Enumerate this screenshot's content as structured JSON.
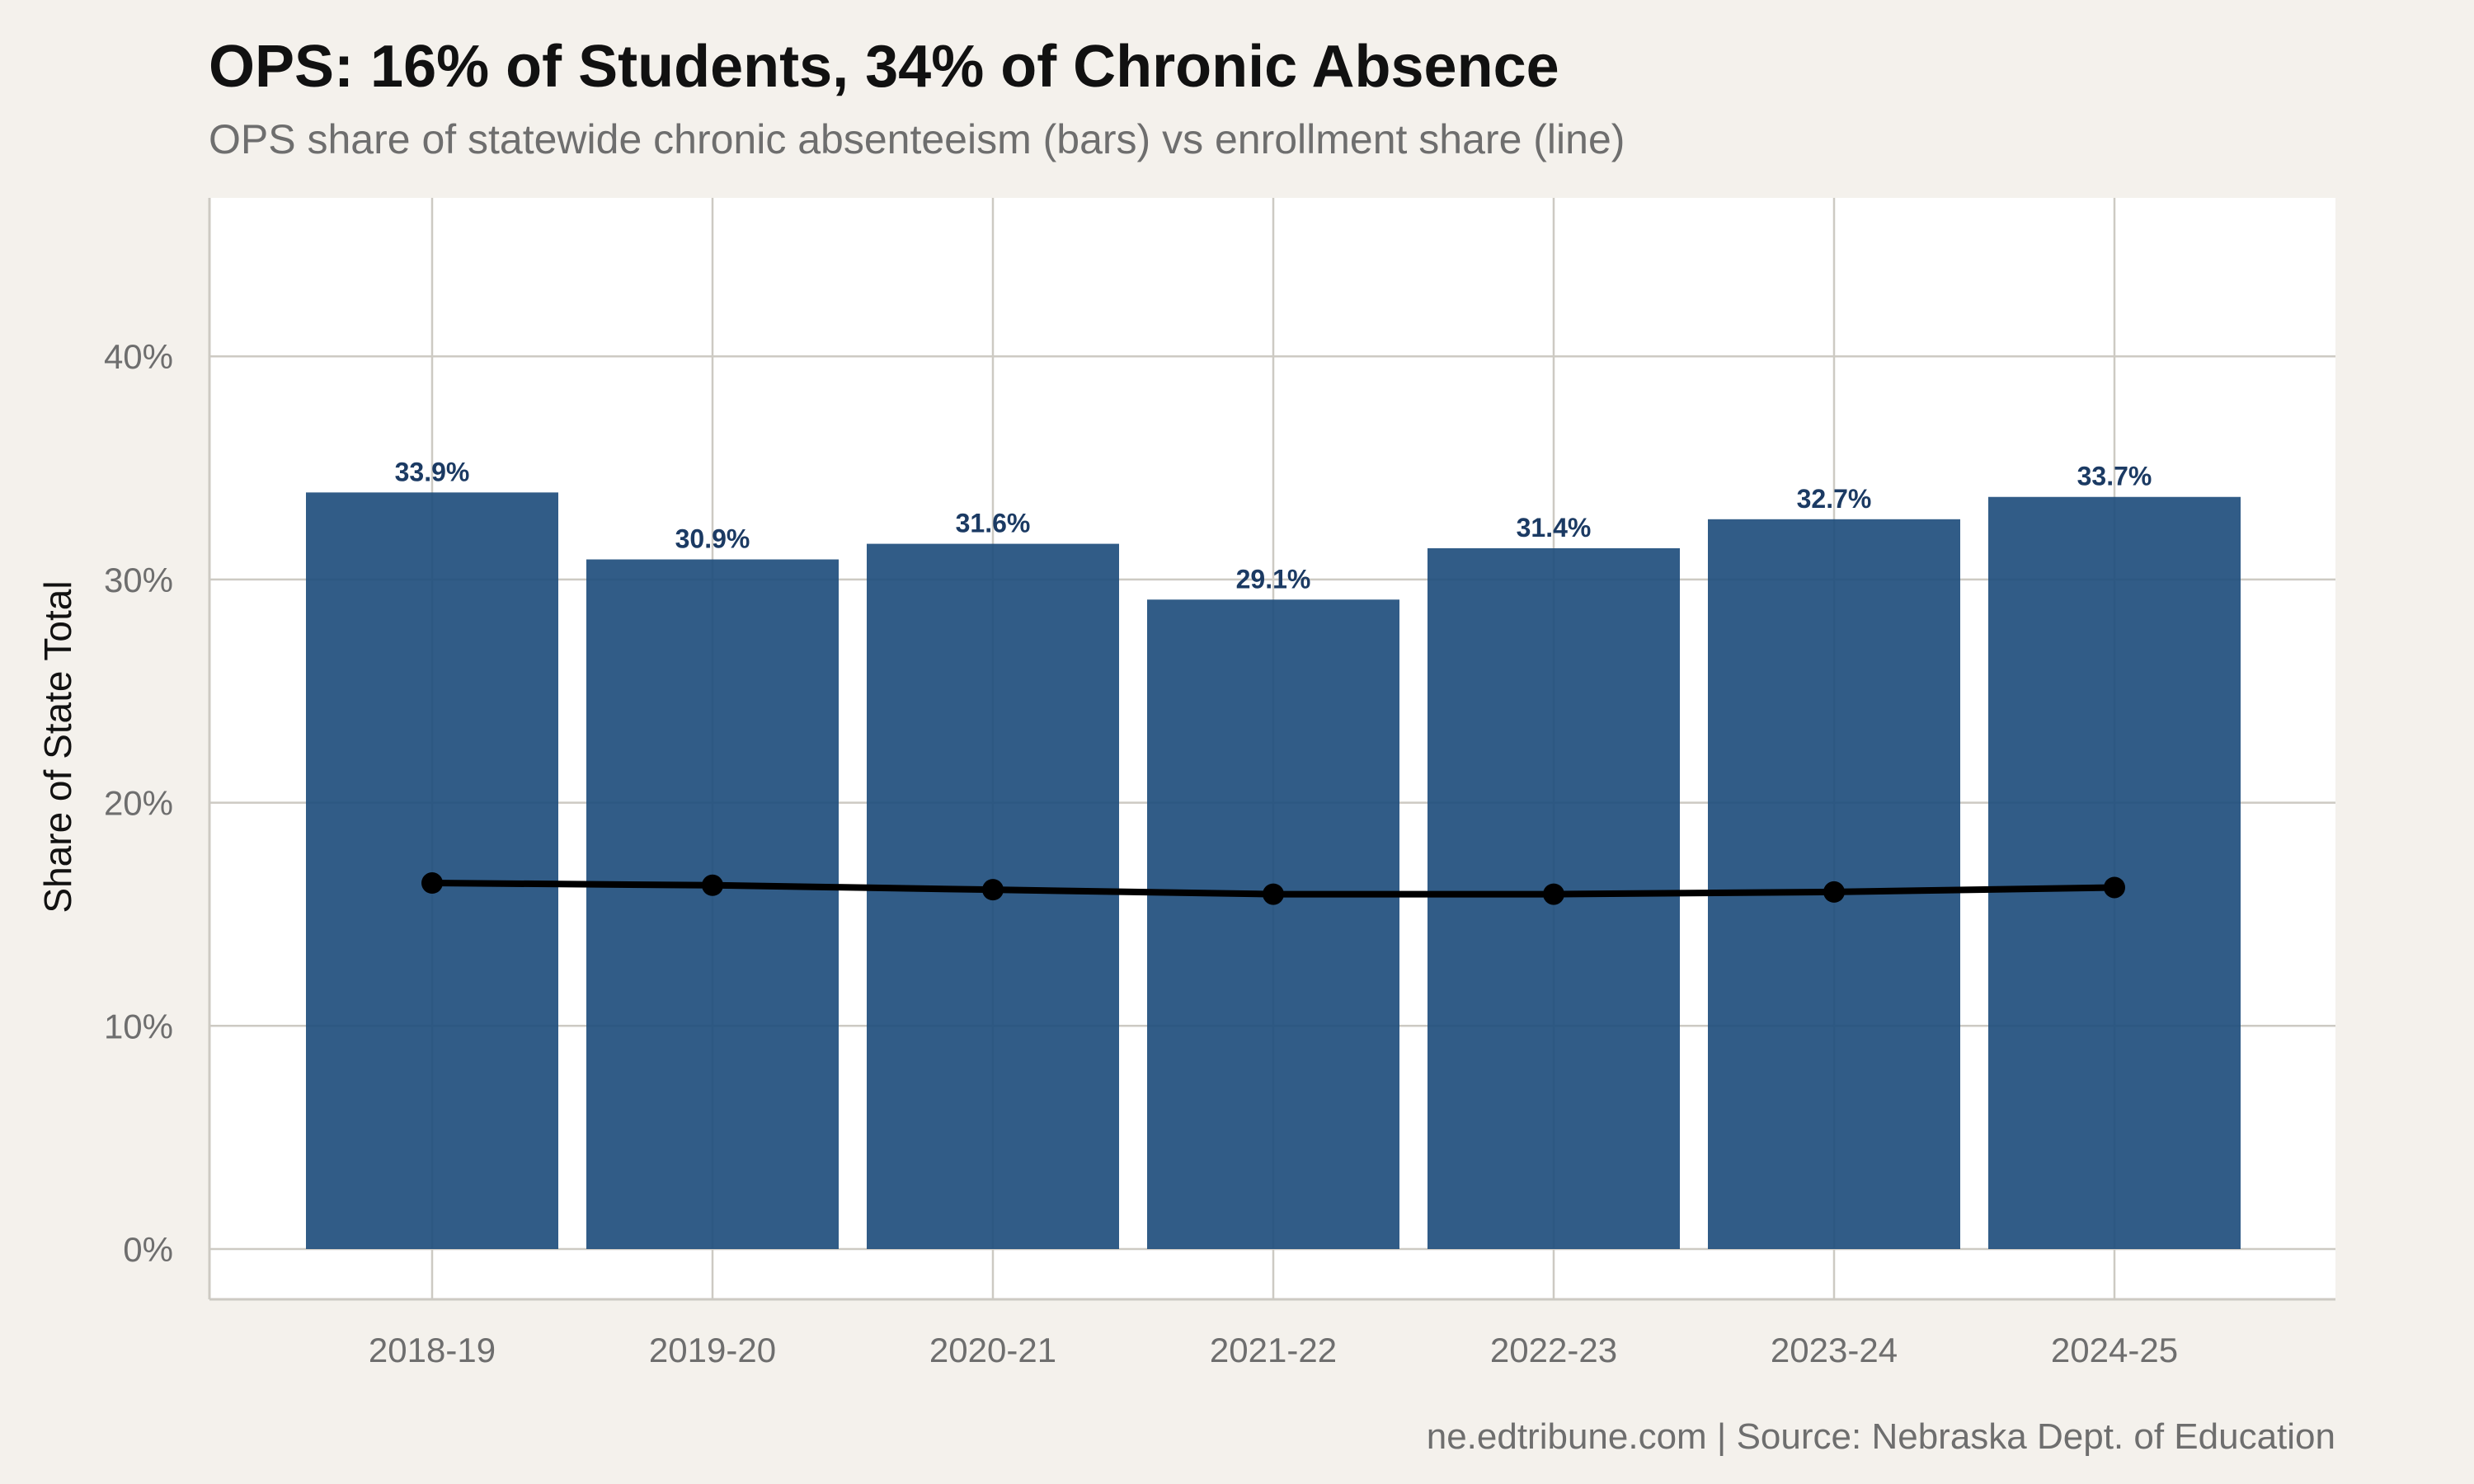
{
  "title": "OPS: 16% of Students, 34% of Chronic Absence",
  "subtitle": "OPS share of statewide chronic absenteeism (bars) vs enrollment share (line)",
  "caption": "ne.edtribune.com | Source: Nebraska Dept. of Education",
  "chart_data": {
    "type": "bar",
    "categories": [
      "2018-19",
      "2019-20",
      "2020-21",
      "2021-22",
      "2022-23",
      "2023-24",
      "2024-25"
    ],
    "series": [
      {
        "type": "bar",
        "values": [
          33.9,
          30.9,
          31.6,
          29.1,
          31.4,
          32.7,
          33.7
        ],
        "data_labels": [
          "33.9%",
          "30.9%",
          "31.6%",
          "29.1%",
          "31.4%",
          "32.7%",
          "33.7%"
        ],
        "color": "#1f4e7d"
      },
      {
        "type": "line",
        "values": [
          16.4,
          16.3,
          16.1,
          15.9,
          15.9,
          16.0,
          16.2
        ],
        "color": "#000000"
      }
    ],
    "xlabel": "",
    "ylabel": "Share of State Total",
    "ylim": [
      0,
      47
    ],
    "yticks": [
      0,
      10,
      20,
      30,
      40
    ],
    "ytick_labels": [
      "0%",
      "10%",
      "20%",
      "30%",
      "40%"
    ],
    "grid": true,
    "panel_background": "#ffffff",
    "page_background": "#f4f1ec",
    "data_label_color": "#1b3a63"
  }
}
